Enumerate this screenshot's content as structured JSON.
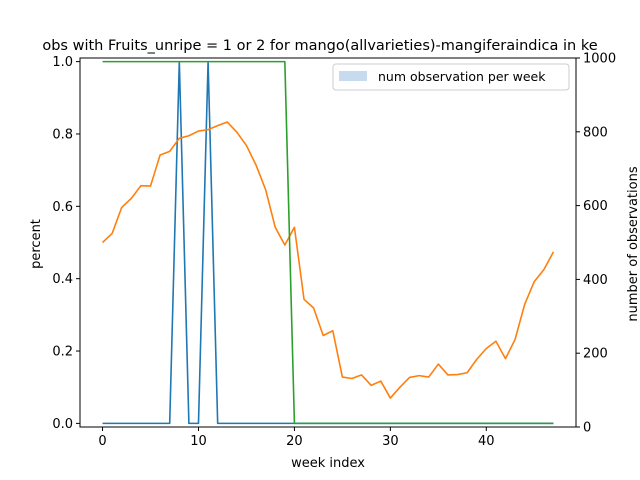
{
  "chart_data": {
    "type": "line",
    "title": "obs with Fruits_unripe = 1 or 2 for mango(allvarieties)-mangiferaindica in ke",
    "xlabel": "week index",
    "ylabel": "percent",
    "y2label": "number of observations",
    "xlim": [
      -2.35,
      49.35
    ],
    "ylim": [
      -0.01,
      1.01
    ],
    "y2lim": [
      0,
      1000
    ],
    "xticks": [
      0,
      10,
      20,
      30,
      40
    ],
    "yticks": [
      0.0,
      0.2,
      0.4,
      0.6,
      0.8,
      1.0
    ],
    "y2ticks": [
      0,
      200,
      400,
      600,
      800,
      1000
    ],
    "xtick_labels": [
      "0",
      "10",
      "20",
      "30",
      "40"
    ],
    "ytick_labels": [
      "0.0",
      "0.2",
      "0.4",
      "0.6",
      "0.8",
      "1.0"
    ],
    "y2tick_labels": [
      "0",
      "200",
      "400",
      "600",
      "800",
      "1000"
    ],
    "legend": {
      "placement": "top-right",
      "entries": [
        "num observation per week"
      ]
    },
    "grid": false,
    "series": [
      {
        "color": "#1f77b4",
        "x": [
          0,
          1,
          2,
          3,
          4,
          5,
          6,
          7,
          8,
          9,
          10,
          11,
          12,
          13,
          14,
          15,
          16,
          17,
          18,
          19,
          20,
          21,
          22,
          23,
          24,
          25,
          26,
          27,
          28,
          29,
          30,
          31,
          32,
          33,
          34,
          35,
          36,
          37,
          38,
          39,
          40,
          41,
          42,
          43,
          44,
          45,
          46,
          47
        ],
        "values": [
          0,
          0,
          0,
          0,
          0,
          0,
          0,
          0,
          1,
          0,
          0,
          1,
          0,
          0,
          0,
          0,
          0,
          0,
          0,
          0,
          0,
          0,
          0,
          0,
          0,
          0,
          0,
          0,
          0,
          0,
          0,
          0,
          0,
          0,
          0,
          0,
          0,
          0,
          0,
          0,
          0,
          0,
          0,
          0,
          0,
          0,
          0,
          0
        ]
      },
      {
        "color": "#ff7f0e",
        "x": [
          0,
          1,
          2,
          3,
          4,
          5,
          6,
          7,
          8,
          9,
          10,
          11,
          12,
          13,
          14,
          15,
          16,
          17,
          18,
          19,
          20,
          21,
          22,
          23,
          24,
          25,
          26,
          27,
          28,
          29,
          30,
          31,
          32,
          33,
          34,
          35,
          36,
          37,
          38,
          39,
          40,
          41,
          42,
          43,
          44,
          45,
          46,
          47
        ],
        "values": [
          0.5,
          0.525,
          0.597,
          0.622,
          0.657,
          0.656,
          0.742,
          0.752,
          0.788,
          0.795,
          0.808,
          0.812,
          0.823,
          0.833,
          0.805,
          0.768,
          0.714,
          0.646,
          0.542,
          0.493,
          0.542,
          0.343,
          0.319,
          0.243,
          0.256,
          0.128,
          0.124,
          0.134,
          0.105,
          0.117,
          0.07,
          0.1,
          0.127,
          0.132,
          0.128,
          0.164,
          0.134,
          0.135,
          0.14,
          0.177,
          0.207,
          0.227,
          0.179,
          0.232,
          0.329,
          0.392,
          0.425,
          0.474
        ]
      },
      {
        "color": "#2ca02c",
        "x": [
          0,
          1,
          2,
          3,
          4,
          5,
          6,
          7,
          8,
          9,
          10,
          11,
          12,
          13,
          14,
          15,
          16,
          17,
          18,
          19,
          20,
          21,
          22,
          23,
          24,
          25,
          26,
          27,
          28,
          29,
          30,
          31,
          32,
          33,
          34,
          35,
          36,
          37,
          38,
          39,
          40,
          41,
          42,
          43,
          44,
          45,
          46,
          47
        ],
        "values": [
          1,
          1,
          1,
          1,
          1,
          1,
          1,
          1,
          1,
          1,
          1,
          1,
          1,
          1,
          1,
          1,
          1,
          1,
          1,
          1,
          0,
          0,
          0,
          0,
          0,
          0,
          0,
          0,
          0,
          0,
          0,
          0,
          0,
          0,
          0,
          0,
          0,
          0,
          0,
          0,
          0,
          0,
          0,
          0,
          0,
          0,
          0,
          0
        ]
      }
    ],
    "bars": {
      "name": "num observation per week",
      "color": "#c6dbef",
      "values": []
    }
  }
}
